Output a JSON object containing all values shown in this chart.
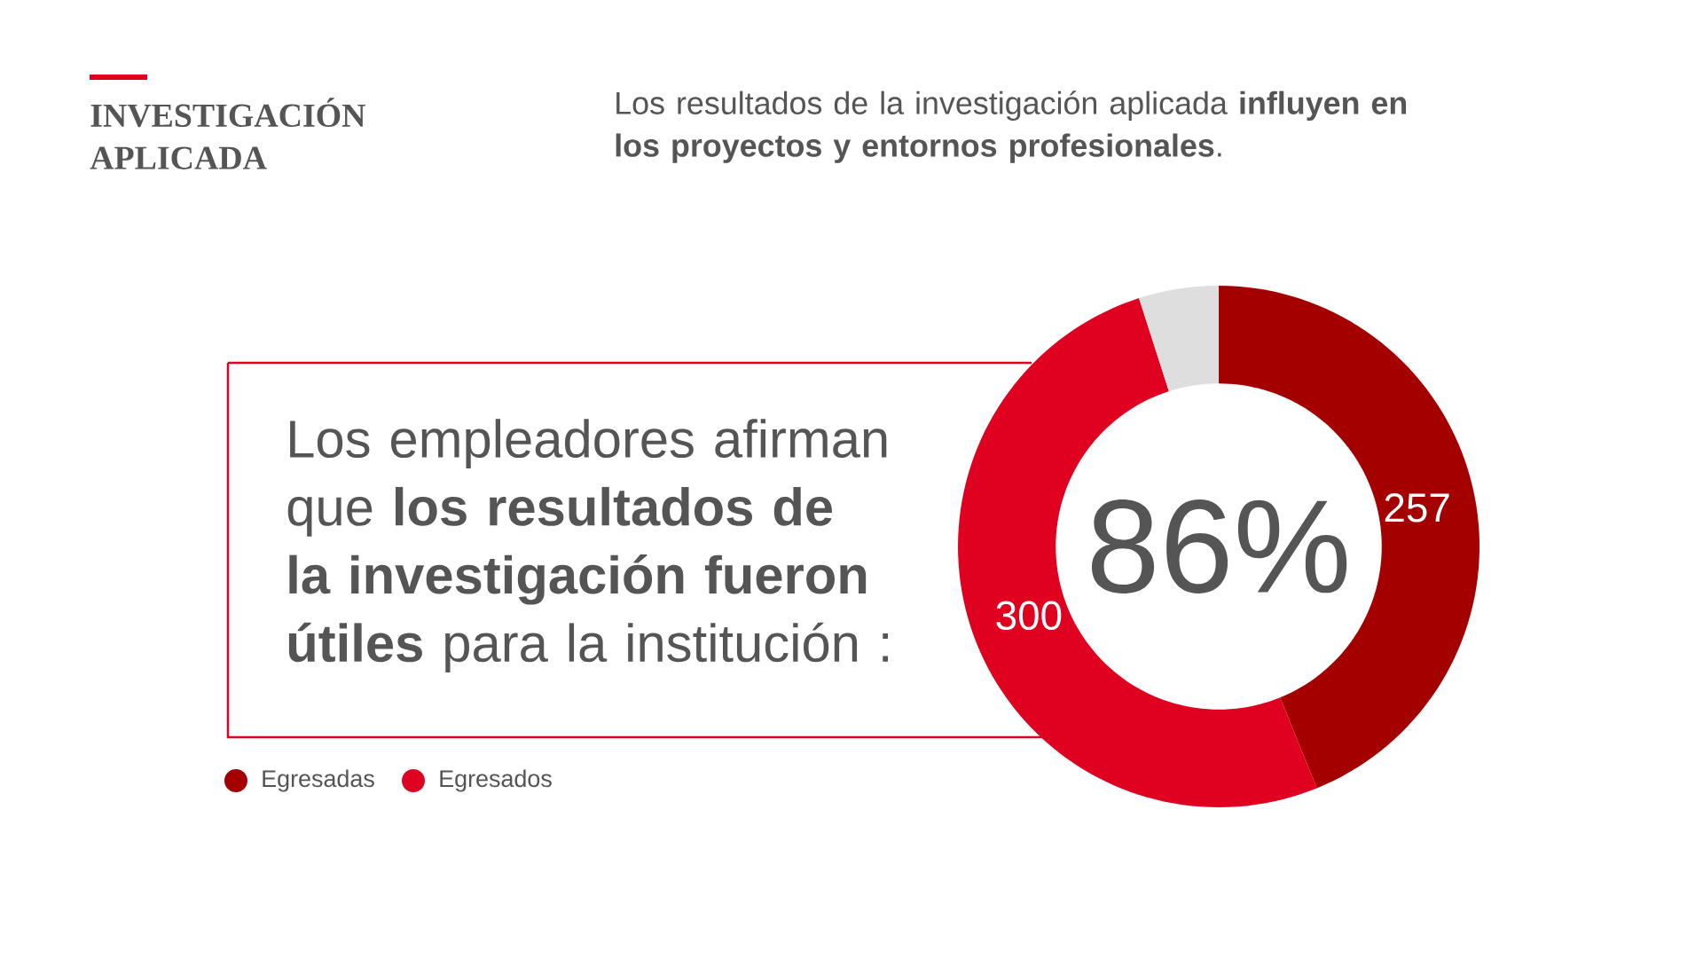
{
  "chart_data": {
    "type": "donut",
    "title": "INVESTIGACIÓN APLICADA",
    "subtitle": "Los resultados de la investigación aplicada **influyen en los proyectos y entornos profesionales**.",
    "categories": [
      "Egresadas",
      "Egresados",
      null
    ],
    "values": [
      257,
      300,
      29
    ],
    "colors": [
      "#a50000",
      "#e00020",
      "#dedede"
    ],
    "value_labels": [
      "257",
      "300",
      null
    ],
    "legend": "bottom left",
    "annotations": [
      "86%",
      "Los empleadores afirman que **los resultados de la investigación fueron útiles** para la institución :"
    ]
  }
}
